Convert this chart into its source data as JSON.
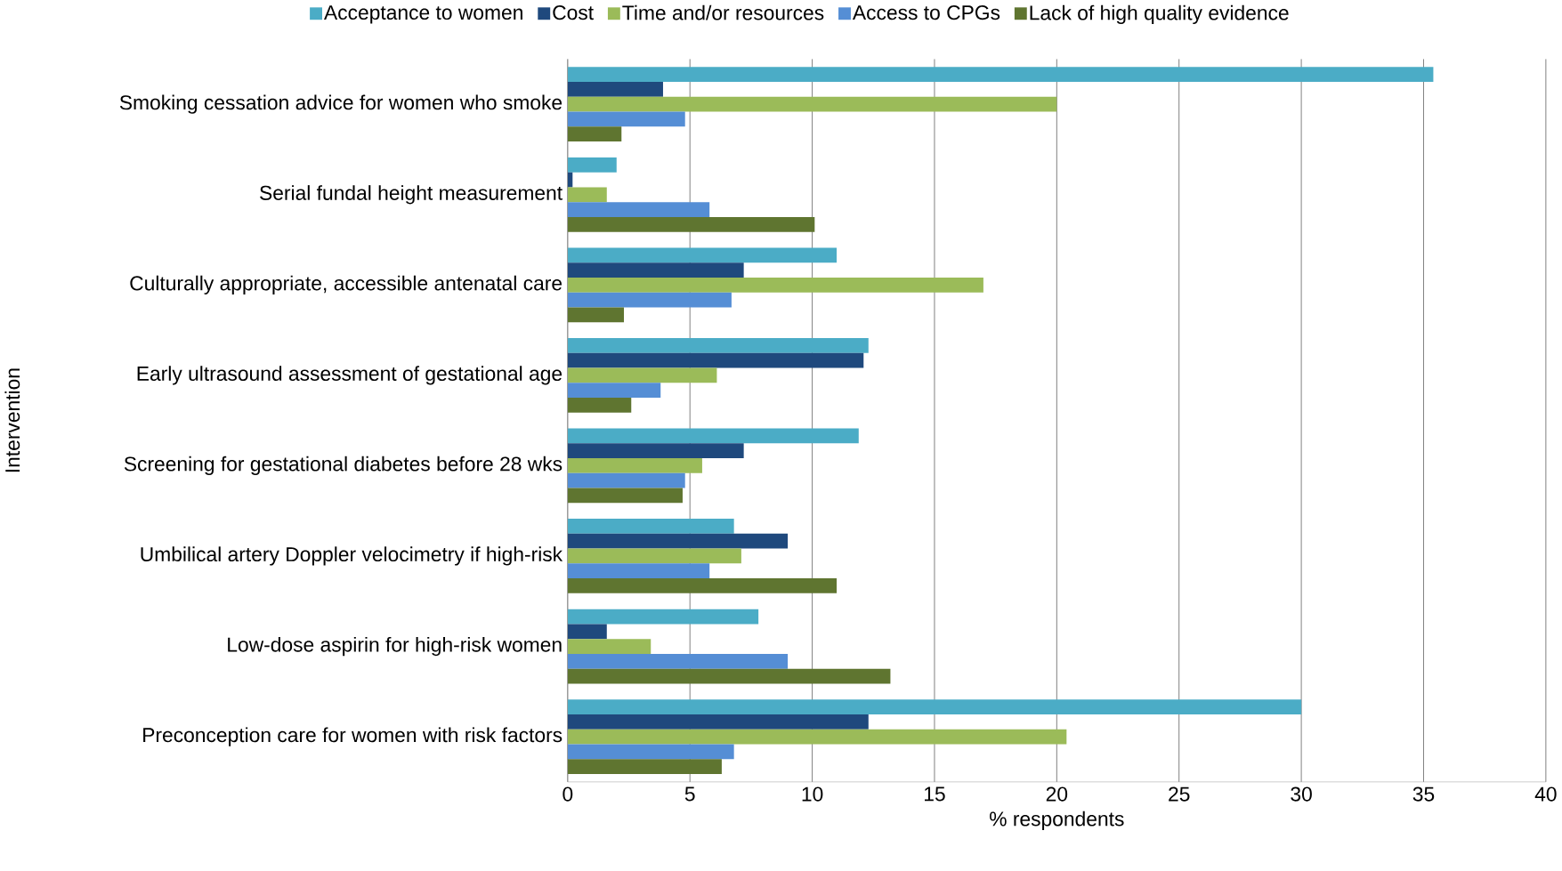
{
  "chart_data": {
    "type": "bar",
    "orientation": "horizontal",
    "categories": [
      "Smoking cessation advice for women who smoke",
      "Serial fundal height measurement",
      "Culturally appropriate, accessible antenatal care",
      "Early ultrasound assessment of gestational age",
      "Screening for gestational diabetes before 28 wks",
      "Umbilical artery Doppler velocimetry if high-risk",
      "Low-dose aspirin for high-risk women",
      "Preconception care for women with risk factors"
    ],
    "series": [
      {
        "name": "Acceptance to women",
        "color": "#4bacc6",
        "values": [
          35.4,
          2.0,
          11.0,
          12.3,
          11.9,
          6.8,
          7.8,
          30.0
        ]
      },
      {
        "name": "Cost",
        "color": "#1f497d",
        "values": [
          3.9,
          0.2,
          7.2,
          12.1,
          7.2,
          9.0,
          1.6,
          12.3
        ]
      },
      {
        "name": "Time and/or resources",
        "color": "#9bbb59",
        "values": [
          20.0,
          1.6,
          17.0,
          6.1,
          5.5,
          7.1,
          3.4,
          20.4
        ]
      },
      {
        "name": "Access to CPGs",
        "color": "#558ed5",
        "values": [
          4.8,
          5.8,
          6.7,
          3.8,
          4.8,
          5.8,
          9.0,
          6.8
        ]
      },
      {
        "name": "Lack of high quality evidence",
        "color": "#5f7530",
        "values": [
          2.2,
          10.1,
          2.3,
          2.6,
          4.7,
          11.0,
          13.2,
          6.3
        ]
      }
    ],
    "xlim": [
      0,
      40
    ],
    "xticks": [
      0,
      5,
      10,
      15,
      20,
      25,
      30,
      35,
      40
    ],
    "xlabel": "% respondents",
    "ylabel": "Intervention",
    "grid": "x",
    "legend": "top"
  }
}
